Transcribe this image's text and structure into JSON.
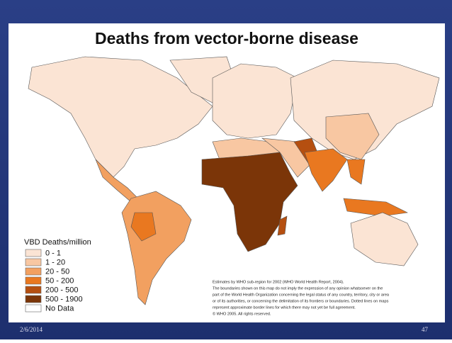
{
  "title": "Deaths from vector-borne disease",
  "legend": {
    "title": "VBD Deaths/million",
    "entries": [
      {
        "label": "0 - 1",
        "color": "#fbe4d4"
      },
      {
        "label": "1 - 20",
        "color": "#f8c7a2"
      },
      {
        "label": "20 - 50",
        "color": "#f2a060"
      },
      {
        "label": "50 - 200",
        "color": "#e97820"
      },
      {
        "label": "200 - 500",
        "color": "#b54f10"
      },
      {
        "label": "500 - 1900",
        "color": "#7b3508"
      },
      {
        "label": "No Data",
        "color": "#ffffff"
      }
    ]
  },
  "note": [
    "Estimates by WHO sub-region for 2002 (WHO World Health Report, 2004).",
    "The boundaries shown on this map do not imply the expression of any opinion whatsoever on the",
    "part of the World Health Organization concerning the legal status of any country, territory, city or area",
    "or of its authorities, or concerning the delimitation of its frontiers or boundaries. Dotted lines on maps",
    "represent approximate border lines for which there may not yet be full agreement.",
    "© WHO 2005. All rights reserved."
  ],
  "footer": {
    "date": "2/6/2014",
    "page": "47"
  }
}
